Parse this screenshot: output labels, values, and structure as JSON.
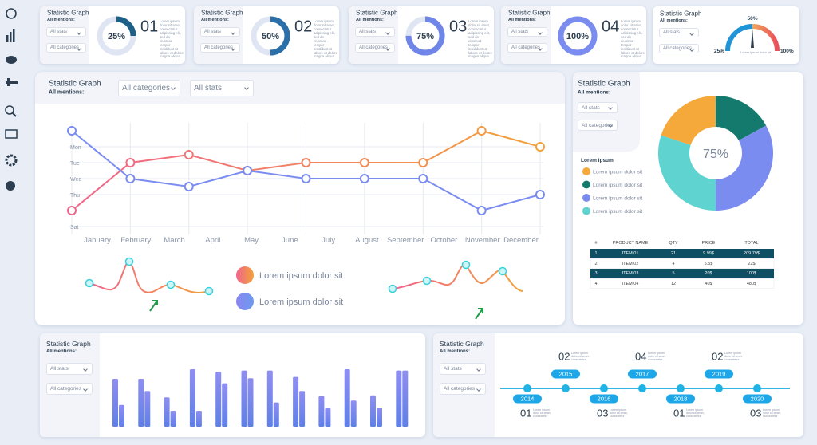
{
  "kpi_cards": [
    {
      "title": "Statistic Graph",
      "subtitle": "All mentions:",
      "filters": [
        "All stats",
        "All categories"
      ],
      "value": 25,
      "value_label": "25%",
      "number": "01",
      "text": "Lorem ipsum dolor sit amet, consectetur adipiscing elit, sed do eiusmod tempor incididunt ut labore et dolore magna aliqua.",
      "color": "#1d5f86"
    },
    {
      "title": "Statistic Graph",
      "subtitle": "All mentions:",
      "filters": [
        "All stats",
        "All categories"
      ],
      "value": 50,
      "value_label": "50%",
      "number": "02",
      "text": "Lorem ipsum dolor sit amet, consectetur adipiscing elit, sed do eiusmod tempor incididunt ut labore et dolore magna aliqua.",
      "color": "#2a6fa8"
    },
    {
      "title": "Statistic Graph",
      "subtitle": "All mentions:",
      "filters": [
        "All stats",
        "All categories"
      ],
      "value": 75,
      "value_label": "75%",
      "number": "03",
      "text": "Lorem ipsum dolor sit amet, consectetur adipiscing elit, sed do eiusmod tempor incididunt ut labore et dolore magna aliqua.",
      "color": "#6f86e8"
    },
    {
      "title": "Statistic Graph",
      "subtitle": "All mentions:",
      "filters": [
        "All stats",
        "All categories"
      ],
      "value": 100,
      "value_label": "100%",
      "number": "04",
      "text": "Lorem ipsum dolor sit amet, consectetur adipiscing elit, sed do eiusmod tempor incididunt ut labore et dolore magna aliqua.",
      "color": "#7b8cf0"
    }
  ],
  "gauge_card": {
    "title": "Statistic Graph",
    "subtitle": "All mentions:",
    "filters": [
      "All stats",
      "All categories"
    ],
    "labels": [
      "25%",
      "50%",
      "100%"
    ],
    "caption": "Lorem ipsum dolor sit"
  },
  "line_card": {
    "title": "Statistic Graph",
    "subtitle": "All mentions:",
    "filters": [
      "All categories",
      "All stats"
    ],
    "chart_data": {
      "type": "line",
      "ylim": [
        0,
        6
      ],
      "yticks": [
        {
          "value": 5,
          "label": "Mon"
        },
        {
          "value": 4,
          "label": "Tue"
        },
        {
          "value": 3,
          "label": "Wed"
        },
        {
          "value": 2,
          "label": "Thu"
        },
        {
          "value": 0,
          "label": "Sat"
        }
      ],
      "grid": true,
      "x_labels": [
        "January",
        "February",
        "March",
        "April",
        "May",
        "June",
        "July",
        "August",
        "September",
        "October",
        "November",
        "December"
      ],
      "series": [
        {
          "name": "Lorem ipsum dolor sit",
          "colors": [
            "#f0648c",
            "#f3a23a"
          ],
          "values": [
            1,
            4,
            4.5,
            3.5,
            4,
            4,
            4,
            6,
            5
          ]
        },
        {
          "name": "Lorem ipsum dolor sit",
          "colors": [
            "#7b8cf0",
            "#7b8cf0"
          ],
          "values": [
            6,
            3,
            2.5,
            3.5,
            3,
            3,
            3,
            1,
            2
          ]
        }
      ]
    }
  },
  "pie_card": {
    "title": "Statistic Graph",
    "subtitle": "All mentions:",
    "filters": [
      "All stats",
      "All categories"
    ],
    "chart_data": {
      "type": "pie",
      "center_label": "75%",
      "legend_title": "Lorem ipsum",
      "categories": [
        "Lorem ipsum dolor sit",
        "Lorem ipsum dolor sit",
        "Lorem ipsum dolor sit",
        "Lorem ipsum dolor sit"
      ],
      "values": [
        20,
        17,
        33,
        30
      ],
      "colors": [
        "#f6a93b",
        "#137a6d",
        "#7b8cf0",
        "#5fd3cf"
      ]
    }
  },
  "table": {
    "headers": [
      "#",
      "PRODUCT NAME",
      "QTY",
      "PRICE",
      "TOTAL"
    ],
    "rows": [
      [
        "1",
        "ITEM 01",
        "21",
        "9.99$",
        "209.79$"
      ],
      [
        "2",
        "ITEM 02",
        "4",
        "5.5$",
        "22$"
      ],
      [
        "3",
        "ITEM 03",
        "5",
        "20$",
        "100$"
      ],
      [
        "4",
        "ITEM 04",
        "12",
        "40$",
        "480$"
      ]
    ],
    "highlighted": [
      true,
      false,
      true,
      false
    ]
  },
  "bar_card": {
    "title": "Statistic Graph",
    "subtitle": "All mentions:",
    "filters": [
      "All stats",
      "All categories"
    ],
    "chart_data": {
      "type": "bar",
      "ylim": [
        0,
        100
      ],
      "series": [
        {
          "color": "#7d86ee",
          "values": [
            75,
            75,
            46,
            90,
            86,
            88,
            88,
            78,
            48,
            90,
            49,
            88
          ]
        },
        {
          "color": "#6a7ce6",
          "values": [
            34,
            56,
            25,
            25,
            68,
            76,
            38,
            56,
            29,
            41,
            30,
            88
          ]
        }
      ]
    }
  },
  "timeline_card": {
    "title": "Statistic Graph",
    "subtitle": "All mentions:",
    "filters": [
      "All stats",
      "All categories"
    ],
    "events": [
      {
        "year": "2014",
        "number": "01",
        "text": "Lorem ipsum dolor sit amet, consectetur"
      },
      {
        "year": "2015",
        "number": "02",
        "text": "Lorem ipsum dolor sit amet, consectetur"
      },
      {
        "year": "2016",
        "number": "03",
        "text": "Lorem ipsum dolor sit amet, consectetur"
      },
      {
        "year": "2017",
        "number": "04",
        "text": "Lorem ipsum dolor sit amet, consectetur"
      },
      {
        "year": "2018",
        "number": "01",
        "text": "Lorem ipsum dolor sit amet, consectetur"
      },
      {
        "year": "2019",
        "number": "02",
        "text": "Lorem ipsum dolor sit amet, consectetur"
      },
      {
        "year": "2020",
        "number": "03",
        "text": "Lorem ipsum dolor sit amet, consectetur"
      }
    ]
  }
}
